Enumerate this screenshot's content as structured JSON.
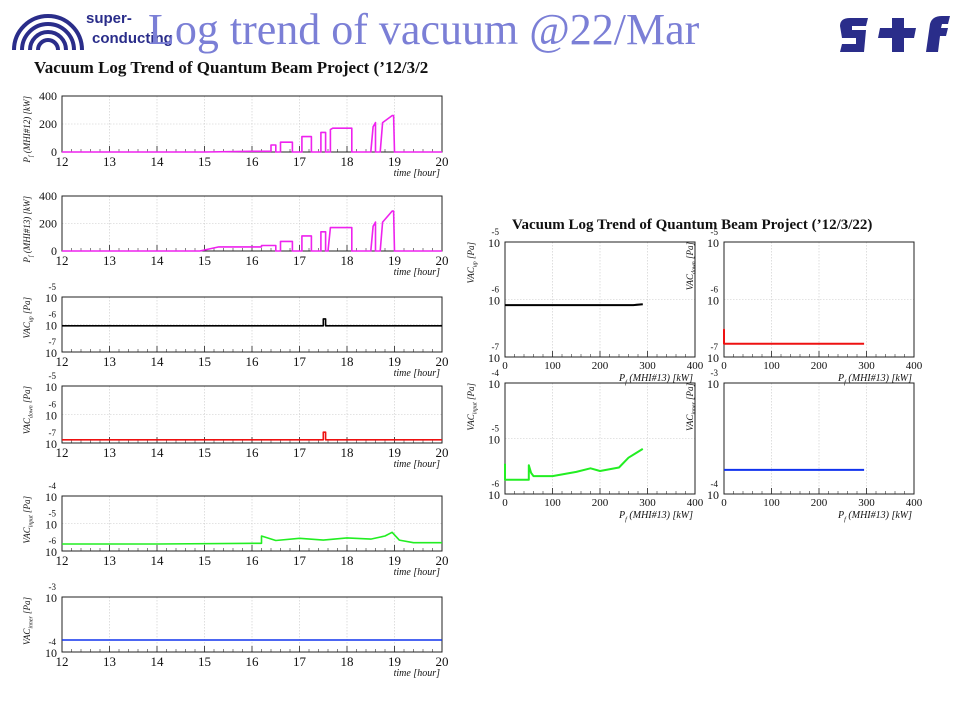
{
  "header": {
    "slide_title": "Log trend of vacuum @22/Mar",
    "logo_line1": "super-",
    "logo_line2": "conducting"
  },
  "left_panel_title": "Vacuum Log Trend of Quantum Beam Project (’12/3/2",
  "right_panel_title": "Vacuum Log Trend of Quantum Beam Project (’12/3/22)",
  "colors": {
    "magenta": "#ee22ee",
    "black": "#000000",
    "red": "#ee1111",
    "green": "#22ee22",
    "blue": "#1133ee"
  },
  "chart_data": [
    {
      "id": "pf12",
      "type": "line",
      "xlabel": "time [hour]",
      "ylabel": "P_f (MHI#12) [kW]",
      "xlim": [
        12,
        20
      ],
      "ylim": [
        0,
        400
      ],
      "xticks": [
        "12",
        "13",
        "14",
        "15",
        "16",
        "17",
        "18",
        "19",
        "20"
      ],
      "yticks": [
        "0",
        "200",
        "400"
      ],
      "color": "magenta",
      "series": [
        {
          "x": [
            12,
            15.0,
            16.0,
            16.4,
            16.4,
            16.5,
            16.5,
            16.6,
            16.6,
            16.85,
            16.85,
            17.05,
            17.05,
            17.25,
            17.25,
            17.45,
            17.45,
            17.55,
            17.55,
            17.65,
            17.65,
            17.7,
            17.85,
            18.1,
            18.1,
            18.5,
            18.55,
            18.6,
            18.6,
            18.7,
            18.75,
            18.95,
            18.98,
            19.0,
            19.0,
            20
          ],
          "y": [
            0,
            0,
            5,
            5,
            50,
            50,
            0,
            0,
            70,
            70,
            0,
            0,
            110,
            110,
            0,
            0,
            140,
            140,
            0,
            0,
            160,
            170,
            170,
            170,
            0,
            0,
            180,
            210,
            0,
            0,
            210,
            260,
            260,
            0,
            0,
            0
          ]
        }
      ]
    },
    {
      "id": "pf13",
      "type": "line",
      "xlabel": "time [hour]",
      "ylabel": "P_f (MHI#13) [kW]",
      "xlim": [
        12,
        20
      ],
      "ylim": [
        0,
        400
      ],
      "xticks": [
        "12",
        "13",
        "14",
        "15",
        "16",
        "17",
        "18",
        "19",
        "20"
      ],
      "yticks": [
        "0",
        "200",
        "400"
      ],
      "color": "magenta",
      "series": [
        {
          "x": [
            12,
            14.9,
            15.3,
            15.3,
            16.2,
            16.2,
            16.5,
            16.5,
            16.6,
            16.6,
            16.85,
            16.85,
            17.05,
            17.05,
            17.25,
            17.25,
            17.45,
            17.45,
            17.55,
            17.55,
            17.6,
            17.65,
            17.85,
            18.1,
            18.1,
            18.5,
            18.55,
            18.6,
            18.6,
            18.7,
            18.75,
            18.95,
            18.98,
            19.0,
            19.0,
            20
          ],
          "y": [
            0,
            0,
            30,
            30,
            30,
            40,
            40,
            0,
            0,
            70,
            70,
            0,
            0,
            110,
            110,
            0,
            0,
            140,
            140,
            0,
            0,
            170,
            170,
            170,
            0,
            0,
            180,
            210,
            0,
            0,
            210,
            290,
            290,
            0,
            0,
            0
          ]
        }
      ]
    },
    {
      "id": "vac_up_time",
      "type": "line",
      "xlabel": "time [hour]",
      "ylabel": "VAC_up [Pa]",
      "xlim": [
        12,
        20
      ],
      "yscale": "log",
      "ylim": [
        1e-07,
        1e-05
      ],
      "xticks": [
        "12",
        "13",
        "14",
        "15",
        "16",
        "17",
        "18",
        "19",
        "20"
      ],
      "yticks": [
        {
          "mantissa": "10",
          "exponent": "-5"
        },
        {
          "mantissa": "10",
          "exponent": "-6"
        },
        {
          "mantissa": "10",
          "exponent": "-7"
        }
      ],
      "color": "black",
      "series": [
        {
          "x": [
            12,
            17.5,
            17.5,
            17.55,
            17.55,
            20
          ],
          "y": [
            9e-07,
            9e-07,
            1.6e-06,
            1.6e-06,
            9e-07,
            9e-07
          ]
        }
      ]
    },
    {
      "id": "vac_down_time",
      "type": "line",
      "xlabel": "time [hour]",
      "ylabel": "VAC_down [Pa]",
      "xlim": [
        12,
        20
      ],
      "yscale": "log",
      "ylim": [
        1e-07,
        1e-05
      ],
      "xticks": [
        "12",
        "13",
        "14",
        "15",
        "16",
        "17",
        "18",
        "19",
        "20"
      ],
      "yticks": [
        {
          "mantissa": "10",
          "exponent": "-5"
        },
        {
          "mantissa": "10",
          "exponent": "-6"
        },
        {
          "mantissa": "10",
          "exponent": "-7"
        }
      ],
      "color": "red",
      "series": [
        {
          "x": [
            12,
            17.5,
            17.5,
            17.55,
            17.55,
            20
          ],
          "y": [
            1.3e-07,
            1.3e-07,
            2.4e-07,
            2.4e-07,
            1.3e-07,
            1.3e-07
          ]
        }
      ]
    },
    {
      "id": "vac_input_time",
      "type": "line",
      "xlabel": "time [hour]",
      "ylabel": "VAC_input [Pa]",
      "xlim": [
        12,
        20
      ],
      "yscale": "log",
      "ylim": [
        1e-06,
        0.0001
      ],
      "xticks": [
        "12",
        "13",
        "14",
        "15",
        "16",
        "17",
        "18",
        "19",
        "20"
      ],
      "yticks": [
        {
          "mantissa": "10",
          "exponent": "-4"
        },
        {
          "mantissa": "10",
          "exponent": "-5"
        },
        {
          "mantissa": "10",
          "exponent": "-6"
        }
      ],
      "color": "green",
      "series": [
        {
          "x": [
            12,
            14,
            16.2,
            16.2,
            16.5,
            17.0,
            17.5,
            18.0,
            18.5,
            18.8,
            18.95,
            19.1,
            19.4,
            20
          ],
          "y": [
            1.8e-06,
            1.8e-06,
            1.9e-06,
            3.5e-06,
            2.4e-06,
            2.9e-06,
            2.5e-06,
            3e-06,
            2.7e-06,
            3.5e-06,
            4.8e-06,
            2.5e-06,
            2e-06,
            2e-06
          ]
        }
      ]
    },
    {
      "id": "vac_inner_time",
      "type": "line",
      "xlabel": "time [hour]",
      "ylabel": "VAC_inner [Pa]",
      "xlim": [
        12,
        20
      ],
      "yscale": "log",
      "ylim": [
        0.0001,
        0.001
      ],
      "xticks": [
        "12",
        "13",
        "14",
        "15",
        "16",
        "17",
        "18",
        "19",
        "20"
      ],
      "yticks": [
        {
          "mantissa": "10",
          "exponent": "-3"
        },
        {
          "mantissa": "10",
          "exponent": "-4"
        }
      ],
      "color": "blue",
      "series": [
        {
          "x": [
            12,
            20
          ],
          "y": [
            0.000165,
            0.000165
          ]
        }
      ]
    },
    {
      "id": "vac_up_power",
      "type": "scatter",
      "xlabel": "P_f (MHI#13) [kW]",
      "ylabel": "VAC_up [Pa]",
      "xlim": [
        0,
        400
      ],
      "yscale": "log",
      "ylim": [
        1e-07,
        1e-05
      ],
      "xticks": [
        "0",
        "100",
        "200",
        "300",
        "400"
      ],
      "yticks": [
        {
          "mantissa": "10",
          "exponent": "-5"
        },
        {
          "mantissa": "10",
          "exponent": "-6"
        },
        {
          "mantissa": "10",
          "exponent": "-7"
        }
      ],
      "color": "black",
      "series": [
        {
          "x": [
            0,
            270,
            290
          ],
          "y": [
            8e-07,
            8e-07,
            8.3e-07
          ]
        }
      ]
    },
    {
      "id": "vac_down_power",
      "type": "scatter",
      "xlabel": "P_f (MHI#13) [kW]",
      "ylabel": "VAC_down [Pa]",
      "xlim": [
        0,
        400
      ],
      "yscale": "log",
      "ylim": [
        1e-07,
        1e-05
      ],
      "xticks": [
        "0",
        "100",
        "200",
        "300",
        "400"
      ],
      "yticks": [
        {
          "mantissa": "10",
          "exponent": "-5"
        },
        {
          "mantissa": "10",
          "exponent": "-6"
        },
        {
          "mantissa": "10",
          "exponent": "-7"
        }
      ],
      "color": "red",
      "series": [
        {
          "x": [
            0,
            0,
            0,
            295
          ],
          "y": [
            1.9e-07,
            3e-07,
            1.7e-07,
            1.7e-07
          ]
        }
      ]
    },
    {
      "id": "vac_input_power",
      "type": "scatter",
      "xlabel": "P_f (MHI#13) [kW]",
      "ylabel": "VAC_input [Pa]",
      "xlim": [
        0,
        400
      ],
      "yscale": "log",
      "ylim": [
        1e-06,
        0.0001
      ],
      "xticks": [
        "0",
        "100",
        "200",
        "300",
        "400"
      ],
      "yticks": [
        {
          "mantissa": "10",
          "exponent": "-4"
        },
        {
          "mantissa": "10",
          "exponent": "-5"
        },
        {
          "mantissa": "10",
          "exponent": "-6"
        }
      ],
      "color": "green",
      "series": [
        {
          "x": [
            0,
            0,
            50,
            50,
            55,
            60,
            100,
            150,
            180,
            200,
            240,
            260,
            290
          ],
          "y": [
            3.5e-06,
            1.8e-06,
            1.8e-06,
            3.3e-06,
            2.4e-06,
            2.1e-06,
            2.1e-06,
            2.5e-06,
            2.9e-06,
            2.6e-06,
            3e-06,
            4.5e-06,
            6.5e-06
          ]
        }
      ]
    },
    {
      "id": "vac_inner_power",
      "type": "scatter",
      "xlabel": "P_f (MHI#13) [kW]",
      "ylabel": "VAC_inner [Pa]",
      "xlim": [
        0,
        400
      ],
      "yscale": "log",
      "ylim": [
        0.0001,
        0.001
      ],
      "xticks": [
        "0",
        "100",
        "200",
        "300",
        "400"
      ],
      "yticks": [
        {
          "mantissa": "10",
          "exponent": "-3"
        },
        {
          "mantissa": "10",
          "exponent": "-4"
        }
      ],
      "color": "blue",
      "series": [
        {
          "x": [
            0,
            295
          ],
          "y": [
            0.000165,
            0.000165
          ]
        }
      ]
    }
  ]
}
